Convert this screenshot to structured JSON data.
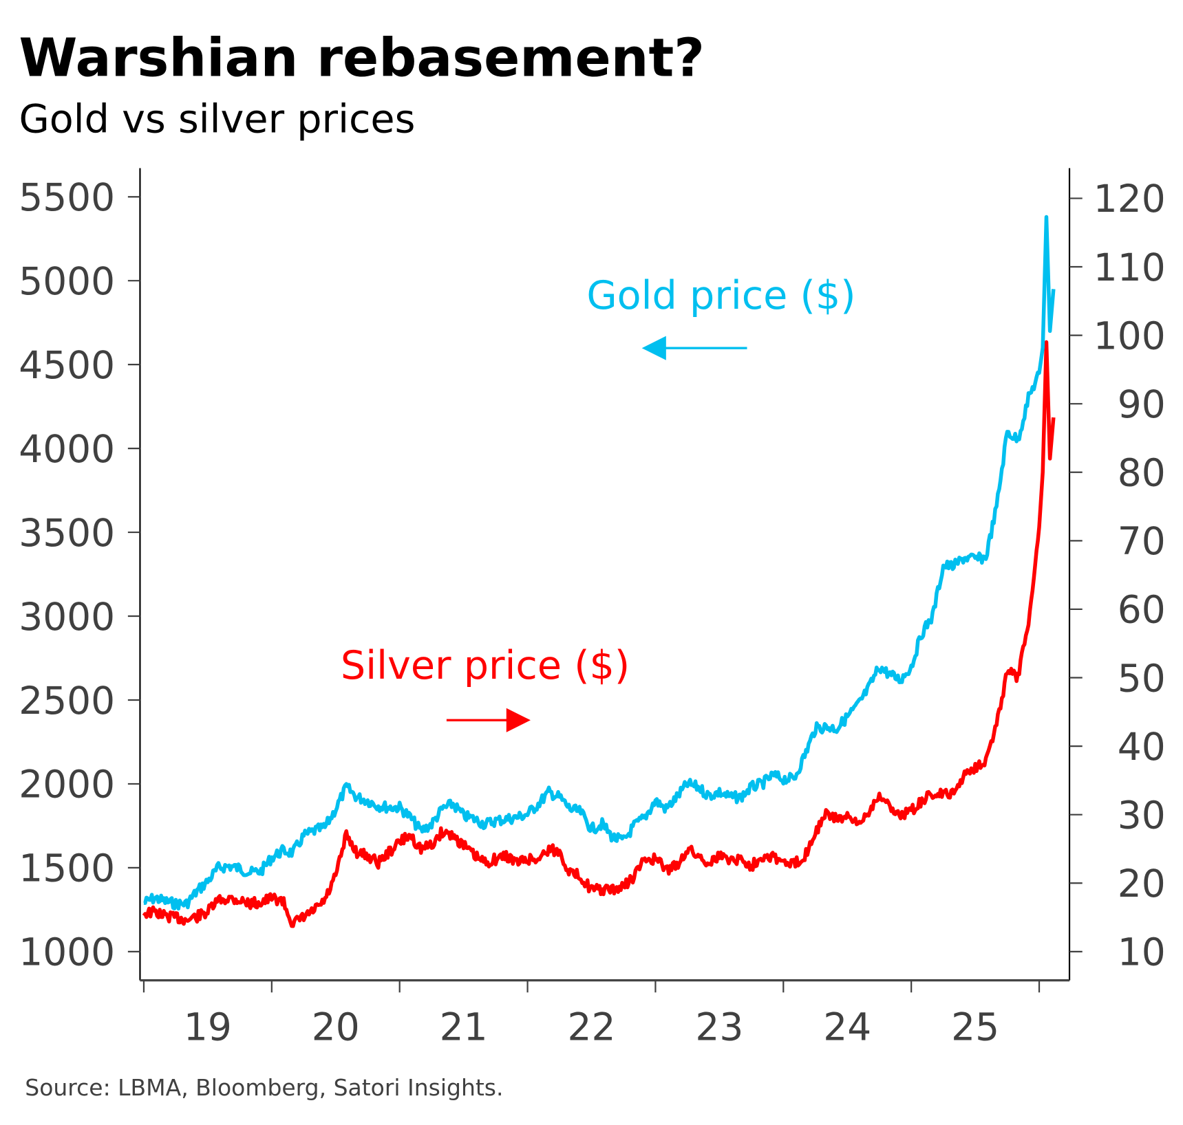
{
  "header": {
    "title": "Warshian rebasement?",
    "subtitle": "Gold vs silver prices"
  },
  "source": "Source: LBMA, Bloomberg, Satori Insights.",
  "colors": {
    "gold": "#00bfef",
    "silver": "#ff0000",
    "axis": "#404040"
  },
  "chart_data": {
    "type": "line",
    "title": "Warshian rebasement?",
    "subtitle": "Gold vs silver prices",
    "x_range": [
      2019,
      2026.15
    ],
    "x_tick_labels": [
      "19",
      "20",
      "21",
      "22",
      "23",
      "24",
      "25"
    ],
    "y_left": {
      "label": "Gold price ($)",
      "ylim": [
        1000,
        5500
      ],
      "ticks": [
        "5500",
        "5000",
        "4500",
        "4000",
        "3500",
        "3000",
        "2500",
        "2000",
        "1500",
        "1000"
      ]
    },
    "y_right": {
      "label": "Silver price ($)",
      "ylim": [
        10,
        120
      ],
      "ticks": [
        "120",
        "110",
        "100",
        "90",
        "80",
        "70",
        "60",
        "50",
        "40",
        "30",
        "20",
        "10"
      ]
    },
    "annotations": {
      "gold": "Gold price ($)",
      "silver": "Silver price ($)"
    },
    "series": [
      {
        "name": "Gold price ($)",
        "axis": "left",
        "values": [
          1290,
          1320,
          1300,
          1285,
          1285,
          1360,
          1420,
          1500,
          1510,
          1495,
          1470,
          1480,
          1560,
          1600,
          1590,
          1690,
          1720,
          1740,
          1850,
          1980,
          1920,
          1900,
          1870,
          1860,
          1860,
          1800,
          1720,
          1760,
          1850,
          1880,
          1810,
          1790,
          1760,
          1780,
          1790,
          1800,
          1820,
          1880,
          1950,
          1920,
          1850,
          1830,
          1730,
          1760,
          1680,
          1660,
          1750,
          1800,
          1900,
          1850,
          1920,
          2000,
          1980,
          1930,
          1950,
          1920,
          1920,
          1980,
          2000,
          2050,
          2030,
          2030,
          2170,
          2330,
          2340,
          2330,
          2400,
          2470,
          2570,
          2700,
          2650,
          2620,
          2700,
          2900,
          3000,
          3300,
          3300,
          3350,
          3340,
          3350,
          3650,
          4100,
          4050,
          4300,
          4450,
          4600,
          5380,
          4700,
          4950
        ]
      },
      {
        "name": "Silver price ($)",
        "axis": "right",
        "values": [
          15.6,
          15.8,
          15.2,
          15.0,
          14.6,
          15.1,
          15.8,
          17.5,
          17.8,
          17.5,
          17.0,
          17.2,
          17.8,
          17.5,
          14.0,
          15.0,
          16.0,
          17.5,
          21.0,
          27.0,
          24.5,
          24.0,
          23.0,
          24.5,
          26,
          27,
          25,
          25.5,
          27.5,
          27,
          25.5,
          24,
          23,
          23.5,
          24,
          23,
          23.5,
          23.5,
          25,
          24.5,
          21.5,
          21,
          19,
          19,
          19,
          19.5,
          21,
          23.5,
          23.5,
          22,
          22.5,
          25,
          24,
          23,
          24,
          23.5,
          23.5,
          22.5,
          24,
          24,
          23,
          22.7,
          24,
          27.5,
          30,
          29.5,
          29.5,
          28.5,
          30.5,
          33,
          31,
          30,
          30.5,
          32,
          33,
          33,
          33,
          36,
          37,
          38,
          43,
          51,
          50,
          58,
          72,
          80,
          99,
          82,
          88
        ]
      }
    ]
  }
}
